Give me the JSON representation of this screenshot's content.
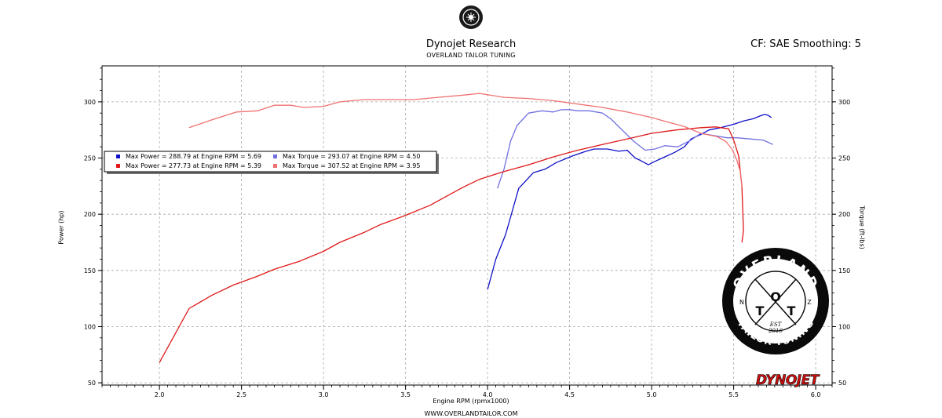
{
  "header": {
    "title": "Dynojet Research",
    "subtitle": "OVERLAND TAILOR TUNING",
    "correction": "CF: SAE Smoothing: 5"
  },
  "footer": {
    "url": "WWW.OVERLANDTAILOR.COM"
  },
  "badge": {
    "top_line": "OVERLAND",
    "bottom_line": "TAILOR TUNING",
    "letters": [
      "T",
      "O",
      "T"
    ],
    "est": "EST",
    "year": "2016",
    "side_letters": [
      "N",
      "Z"
    ]
  },
  "brand": {
    "logo_text": "DYNOJET"
  },
  "colors": {
    "run1_power": "#1010c8",
    "run1_torque": "#7070e0",
    "run2_power": "#e01818",
    "run2_torque": "#f07070",
    "grid": "#a8a8a8"
  },
  "chart_data": {
    "type": "line",
    "xlabel": "Engine RPM (rpmx1000)",
    "ylabel_left": "Power (hp)",
    "ylabel_right": "Torque (ft-lbs)",
    "xlim": [
      1.65,
      6.1
    ],
    "ylim_left": [
      48,
      332
    ],
    "ylim_right": [
      48,
      332
    ],
    "x_ticks": [
      "2.0",
      "2.5",
      "3.0",
      "3.5",
      "4.0",
      "4.5",
      "5.0",
      "5.5",
      "6.0"
    ],
    "y_ticks_left": [
      "50",
      "100",
      "150",
      "200",
      "250",
      "300"
    ],
    "y_ticks_right": [
      "50",
      "100",
      "150",
      "200",
      "250",
      "300"
    ],
    "grid": true,
    "legend_position": "upper-left",
    "legend": [
      "Max Power = 288.79 at Engine RPM = 5.69",
      "Max Torque = 293.07 at Engine RPM = 4.50",
      "Max Power = 277.73 at Engine RPM = 5.39",
      "Max Torque = 307.52 at Engine RPM = 3.95"
    ],
    "series": [
      {
        "color_key": "run1_power",
        "axis": "left",
        "points": [
          [
            4.0,
            133
          ],
          [
            4.05,
            160
          ],
          [
            4.11,
            182
          ],
          [
            4.19,
            223
          ],
          [
            4.28,
            237
          ],
          [
            4.35,
            240
          ],
          [
            4.42,
            246
          ],
          [
            4.52,
            252
          ],
          [
            4.6,
            256
          ],
          [
            4.65,
            258
          ],
          [
            4.73,
            258
          ],
          [
            4.8,
            256
          ],
          [
            4.85,
            257
          ],
          [
            4.9,
            250
          ],
          [
            4.93,
            248
          ],
          [
            4.98,
            244
          ],
          [
            5.02,
            247
          ],
          [
            5.08,
            251
          ],
          [
            5.14,
            255
          ],
          [
            5.2,
            260
          ],
          [
            5.24,
            267
          ],
          [
            5.3,
            271
          ],
          [
            5.35,
            275
          ],
          [
            5.42,
            277
          ],
          [
            5.5,
            280
          ],
          [
            5.56,
            283
          ],
          [
            5.62,
            285
          ],
          [
            5.67,
            288
          ],
          [
            5.69,
            288.8
          ],
          [
            5.71,
            288
          ],
          [
            5.73,
            286
          ]
        ]
      },
      {
        "color_key": "run1_torque",
        "axis": "right",
        "points": [
          [
            4.06,
            223
          ],
          [
            4.1,
            240
          ],
          [
            4.14,
            265
          ],
          [
            4.18,
            279
          ],
          [
            4.25,
            290
          ],
          [
            4.33,
            292
          ],
          [
            4.4,
            291
          ],
          [
            4.45,
            293
          ],
          [
            4.5,
            293.07
          ],
          [
            4.55,
            292
          ],
          [
            4.62,
            292
          ],
          [
            4.7,
            290
          ],
          [
            4.75,
            285
          ],
          [
            4.82,
            275
          ],
          [
            4.89,
            265
          ],
          [
            4.96,
            257
          ],
          [
            5.02,
            258
          ],
          [
            5.08,
            261
          ],
          [
            5.16,
            260
          ],
          [
            5.24,
            266
          ],
          [
            5.3,
            272
          ],
          [
            5.38,
            270
          ],
          [
            5.46,
            268
          ],
          [
            5.52,
            268
          ],
          [
            5.6,
            267
          ],
          [
            5.68,
            266
          ],
          [
            5.74,
            262
          ]
        ]
      },
      {
        "color_key": "run2_power",
        "axis": "left",
        "points": [
          [
            2.0,
            68
          ],
          [
            2.18,
            116
          ],
          [
            2.32,
            128
          ],
          [
            2.45,
            137
          ],
          [
            2.6,
            145
          ],
          [
            2.7,
            151
          ],
          [
            2.85,
            158
          ],
          [
            3.0,
            167
          ],
          [
            3.1,
            175
          ],
          [
            3.25,
            184
          ],
          [
            3.35,
            191
          ],
          [
            3.5,
            199
          ],
          [
            3.65,
            208
          ],
          [
            3.75,
            216
          ],
          [
            3.85,
            224
          ],
          [
            3.95,
            231
          ],
          [
            4.1,
            238
          ],
          [
            4.25,
            244
          ],
          [
            4.4,
            251
          ],
          [
            4.55,
            257
          ],
          [
            4.7,
            262
          ],
          [
            4.85,
            267
          ],
          [
            5.0,
            272
          ],
          [
            5.15,
            275
          ],
          [
            5.3,
            277
          ],
          [
            5.39,
            277.73
          ],
          [
            5.47,
            276
          ],
          [
            5.5,
            266
          ],
          [
            5.53,
            252
          ],
          [
            5.55,
            225
          ],
          [
            5.56,
            185
          ],
          [
            5.55,
            175
          ]
        ]
      },
      {
        "color_key": "run2_torque",
        "axis": "right",
        "points": [
          [
            2.18,
            277
          ],
          [
            2.32,
            284
          ],
          [
            2.47,
            291
          ],
          [
            2.6,
            292
          ],
          [
            2.7,
            297
          ],
          [
            2.8,
            297
          ],
          [
            2.88,
            295
          ],
          [
            3.0,
            296
          ],
          [
            3.1,
            300
          ],
          [
            3.25,
            302
          ],
          [
            3.4,
            302
          ],
          [
            3.55,
            302
          ],
          [
            3.7,
            304
          ],
          [
            3.85,
            306
          ],
          [
            3.95,
            307.5
          ],
          [
            4.1,
            304
          ],
          [
            4.25,
            303
          ],
          [
            4.4,
            301
          ],
          [
            4.55,
            298
          ],
          [
            4.7,
            295
          ],
          [
            4.85,
            291
          ],
          [
            5.0,
            286
          ],
          [
            5.1,
            282
          ],
          [
            5.2,
            278
          ],
          [
            5.3,
            272
          ],
          [
            5.4,
            269
          ],
          [
            5.45,
            265
          ],
          [
            5.49,
            258
          ],
          [
            5.52,
            248
          ],
          [
            5.54,
            238
          ],
          [
            5.55,
            224
          ]
        ]
      }
    ]
  }
}
